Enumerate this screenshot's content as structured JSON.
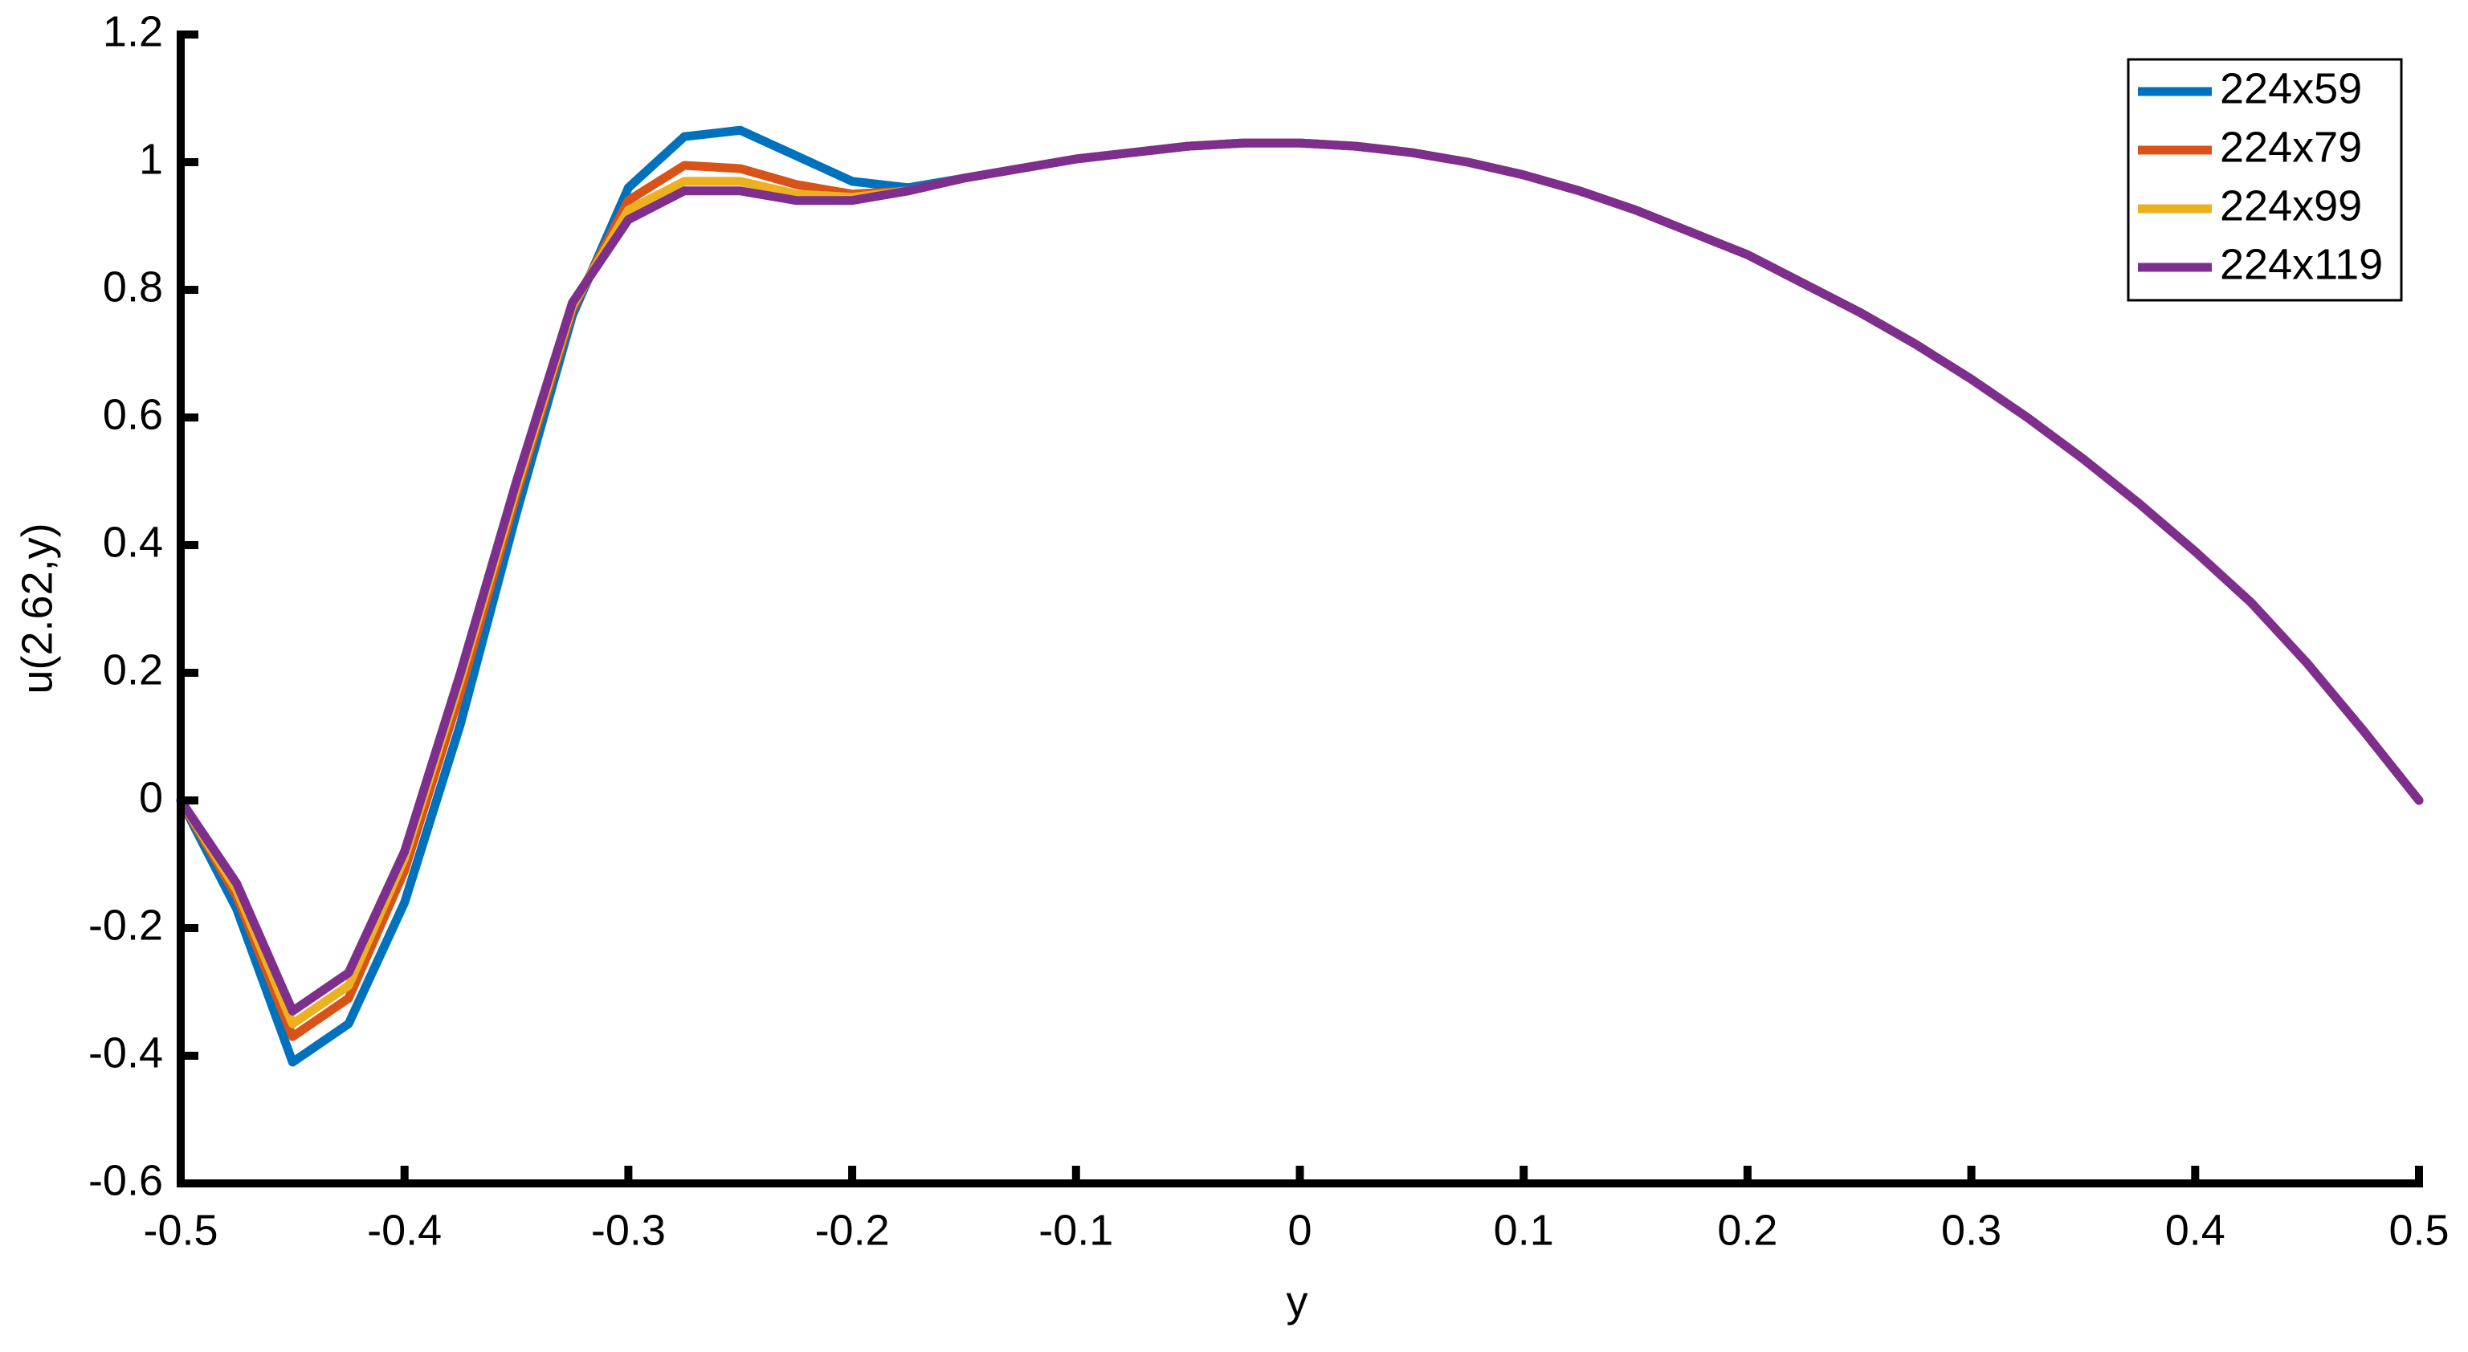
{
  "chart_data": {
    "type": "line",
    "xlabel": "y",
    "ylabel": "u(2.62,y)",
    "x": [
      -0.5,
      -0.475,
      -0.45,
      -0.425,
      -0.4,
      -0.375,
      -0.35,
      -0.325,
      -0.3,
      -0.275,
      -0.25,
      -0.225,
      -0.2,
      -0.175,
      -0.15,
      -0.125,
      -0.1,
      -0.075,
      -0.05,
      -0.025,
      0,
      0.025,
      0.05,
      0.075,
      0.1,
      0.125,
      0.15,
      0.175,
      0.2,
      0.225,
      0.25,
      0.275,
      0.3,
      0.325,
      0.35,
      0.375,
      0.4,
      0.425,
      0.45,
      0.475,
      0.5
    ],
    "series": [
      {
        "name": "224x59",
        "color": "#0072bd",
        "values": [
          0,
          -0.17,
          -0.41,
          -0.35,
          -0.16,
          0.12,
          0.45,
          0.76,
          0.96,
          1.04,
          1.05,
          1.01,
          0.97,
          0.96,
          0.975,
          0.99,
          1.005,
          1.015,
          1.025,
          1.03,
          1.03,
          1.025,
          1.015,
          1.0,
          0.98,
          0.955,
          0.925,
          0.89,
          0.855,
          0.81,
          0.765,
          0.715,
          0.66,
          0.6,
          0.535,
          0.465,
          0.39,
          0.31,
          0.215,
          0.11,
          0
        ]
      },
      {
        "name": "224x79",
        "color": "#d95319",
        "values": [
          0,
          -0.15,
          -0.37,
          -0.31,
          -0.11,
          0.17,
          0.48,
          0.77,
          0.94,
          0.995,
          0.99,
          0.965,
          0.95,
          0.955,
          0.975,
          0.99,
          1.005,
          1.015,
          1.025,
          1.03,
          1.03,
          1.025,
          1.015,
          1.0,
          0.98,
          0.955,
          0.925,
          0.89,
          0.855,
          0.81,
          0.765,
          0.715,
          0.66,
          0.6,
          0.535,
          0.465,
          0.39,
          0.31,
          0.215,
          0.11,
          0
        ]
      },
      {
        "name": "224x99",
        "color": "#edb120",
        "values": [
          0,
          -0.14,
          -0.35,
          -0.29,
          -0.09,
          0.19,
          0.49,
          0.775,
          0.925,
          0.97,
          0.97,
          0.95,
          0.945,
          0.955,
          0.975,
          0.99,
          1.005,
          1.015,
          1.025,
          1.03,
          1.03,
          1.025,
          1.015,
          1.0,
          0.98,
          0.955,
          0.925,
          0.89,
          0.855,
          0.81,
          0.765,
          0.715,
          0.66,
          0.6,
          0.535,
          0.465,
          0.39,
          0.31,
          0.215,
          0.11,
          0
        ]
      },
      {
        "name": "224x119",
        "color": "#7e2f8e",
        "values": [
          0,
          -0.13,
          -0.33,
          -0.27,
          -0.08,
          0.2,
          0.5,
          0.78,
          0.91,
          0.955,
          0.955,
          0.94,
          0.94,
          0.955,
          0.975,
          0.99,
          1.005,
          1.015,
          1.025,
          1.03,
          1.03,
          1.025,
          1.015,
          1.0,
          0.98,
          0.955,
          0.925,
          0.89,
          0.855,
          0.81,
          0.765,
          0.715,
          0.66,
          0.6,
          0.535,
          0.465,
          0.39,
          0.31,
          0.215,
          0.11,
          0
        ]
      }
    ],
    "xlim": [
      -0.5,
      0.5
    ],
    "xticks": [
      -0.5,
      -0.4,
      -0.3,
      -0.2,
      -0.1,
      0,
      0.1,
      0.2,
      0.3,
      0.4,
      0.5
    ],
    "ylim": [
      -0.6,
      1.2
    ],
    "yticks": [
      -0.6,
      -0.4,
      -0.2,
      0,
      0.2,
      0.4,
      0.6,
      0.8,
      1,
      1.2
    ],
    "grid": false,
    "legend": "upper right"
  }
}
